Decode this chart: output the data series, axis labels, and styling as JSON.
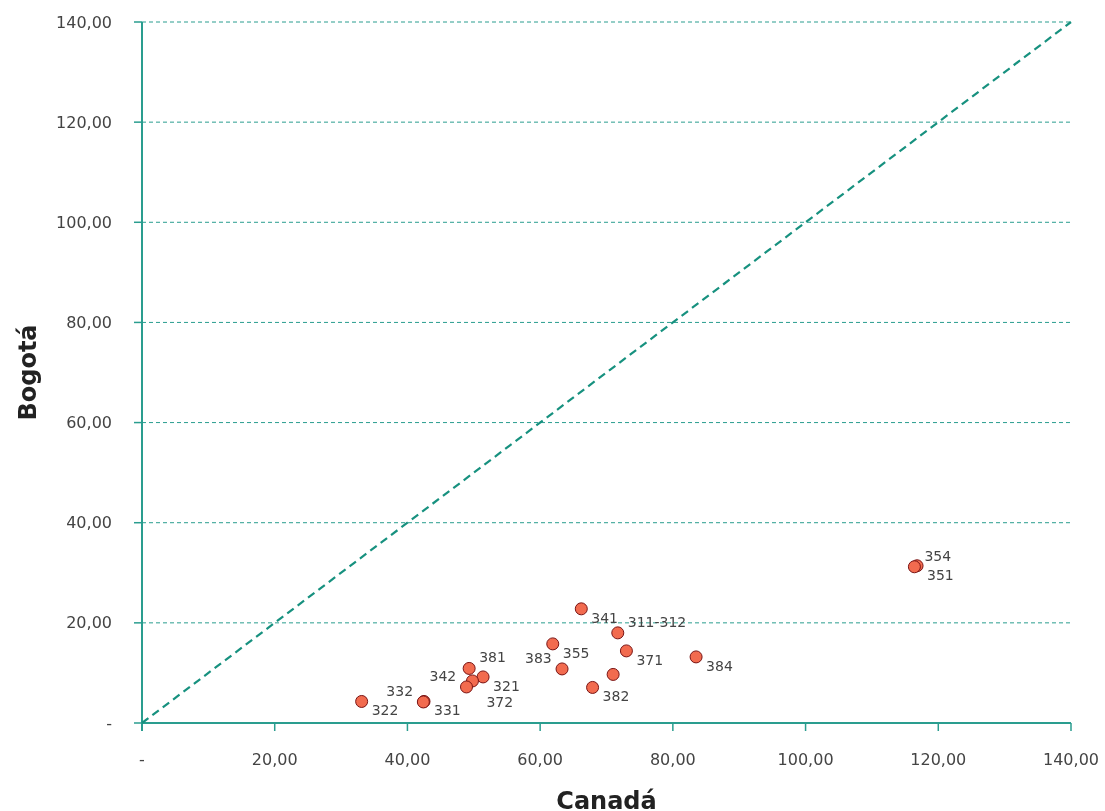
{
  "chart_data": {
    "type": "scatter",
    "xlabel": "Canadá",
    "ylabel": "Bogotá",
    "xlim": [
      0,
      140
    ],
    "ylim": [
      0,
      140
    ],
    "xticks": [
      {
        "value": 0,
        "label": "-"
      },
      {
        "value": 20,
        "label": "20,00"
      },
      {
        "value": 40,
        "label": "40,00"
      },
      {
        "value": 60,
        "label": "60,00"
      },
      {
        "value": 80,
        "label": "80,00"
      },
      {
        "value": 100,
        "label": "100,00"
      },
      {
        "value": 120,
        "label": "120,00"
      },
      {
        "value": 140,
        "label": "140,00"
      }
    ],
    "yticks": [
      {
        "value": 0,
        "label": "-"
      },
      {
        "value": 20,
        "label": "20,00"
      },
      {
        "value": 40,
        "label": "40,00"
      },
      {
        "value": 60,
        "label": "60,00"
      },
      {
        "value": 80,
        "label": "80,00"
      },
      {
        "value": 100,
        "label": "100,00"
      },
      {
        "value": 120,
        "label": "120,00"
      },
      {
        "value": 140,
        "label": "140,00"
      }
    ],
    "grid": "y",
    "marker": "circle",
    "series": [
      {
        "type": "line",
        "marker": "none",
        "color": "#17917f",
        "line_style": "dashed",
        "x": [
          0,
          140
        ],
        "values": [
          0,
          140
        ]
      },
      {
        "color": "#f26b4f",
        "x": [
          33.1,
          42.5,
          42.4,
          49.3,
          51.4,
          49.8,
          48.9,
          61.9,
          66.2,
          63.3,
          71.0,
          71.7,
          73.0,
          67.9,
          83.5,
          116.8,
          116.4
        ],
        "values": [
          4.3,
          4.3,
          4.2,
          10.9,
          9.2,
          8.4,
          7.2,
          15.8,
          22.8,
          10.8,
          9.7,
          18.0,
          14.4,
          7.1,
          13.2,
          31.4,
          31.2
        ]
      }
    ],
    "annotations": [
      {
        "text": "322",
        "x": 33.1,
        "y": 4.3
      },
      {
        "text": "331",
        "x": 42.5,
        "y": 4.3
      },
      {
        "text": "332",
        "x": 42.4,
        "y": 4.2
      },
      {
        "text": "381",
        "x": 49.3,
        "y": 10.9
      },
      {
        "text": "321",
        "x": 51.4,
        "y": 9.2
      },
      {
        "text": "372",
        "x": 49.8,
        "y": 8.4
      },
      {
        "text": "342",
        "x": 48.9,
        "y": 7.2
      },
      {
        "text": "355",
        "x": 61.9,
        "y": 15.8
      },
      {
        "text": "341",
        "x": 66.2,
        "y": 22.8
      },
      {
        "text": "383",
        "x": 63.3,
        "y": 10.8
      },
      {
        "text": "311-312",
        "x": 71.7,
        "y": 18.0
      },
      {
        "text": "371",
        "x": 73.0,
        "y": 14.4
      },
      {
        "text": "382",
        "x": 67.9,
        "y": 7.1
      },
      {
        "text": "384",
        "x": 83.5,
        "y": 13.2
      },
      {
        "text": "351",
        "x": 116.8,
        "y": 31.4
      },
      {
        "text": "354",
        "x": 116.4,
        "y": 31.2
      }
    ]
  }
}
